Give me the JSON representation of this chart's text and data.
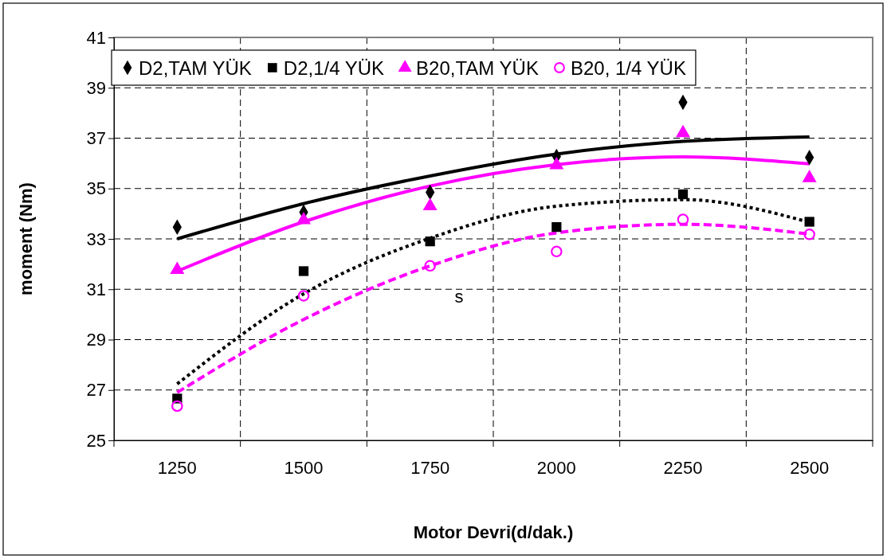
{
  "chart_data": {
    "type": "scatter",
    "xlabel": "Motor Devri(d/dak.)",
    "ylabel": "moment (Nm)",
    "categories": [
      "1250",
      "1500",
      "1750",
      "2000",
      "2250",
      "2500"
    ],
    "ylim": [
      25,
      41
    ],
    "yticks": [
      25,
      27,
      29,
      31,
      33,
      35,
      37,
      39,
      41
    ],
    "grid": true,
    "legend": "top",
    "annotations": [
      "s"
    ],
    "series": [
      {
        "name": "D2,TAM YÜK",
        "color": "#000000",
        "marker": "diamond",
        "values": [
          33.47,
          34.06,
          34.85,
          36.27,
          38.42,
          36.23
        ]
      },
      {
        "name": "D2,1/4 YÜK",
        "color": "#000000",
        "marker": "square",
        "values": [
          26.66,
          31.72,
          32.9,
          33.47,
          34.77,
          33.68
        ]
      },
      {
        "name": "B20,TAM YÜK",
        "color": "#ff00ff",
        "marker": "triangle",
        "values": [
          31.77,
          33.75,
          34.3,
          35.93,
          37.2,
          35.42
        ]
      },
      {
        "name": "B20, 1/4 YÜK",
        "color": "#ff00ff",
        "marker": "circle",
        "values": [
          26.36,
          30.74,
          31.93,
          32.5,
          33.77,
          33.18
        ]
      },
      {
        "type": "line",
        "color": "#000000",
        "marker": "none",
        "line_style": "solid",
        "values": [
          33.0,
          34.4,
          35.5,
          36.37,
          36.87,
          37.05
        ]
      },
      {
        "type": "line",
        "color": "#ff00ff",
        "marker": "none",
        "line_style": "solid",
        "values": [
          31.72,
          33.68,
          35.1,
          35.95,
          36.26,
          35.98
        ]
      },
      {
        "type": "line",
        "color": "#000000",
        "marker": "none",
        "line_style": "dotted",
        "values": [
          27.24,
          30.82,
          33.03,
          34.3,
          34.56,
          33.66
        ]
      },
      {
        "type": "line",
        "color": "#ff00ff",
        "marker": "none",
        "line_style": "dashed",
        "values": [
          26.9,
          29.8,
          31.93,
          33.24,
          33.58,
          33.19
        ]
      }
    ]
  }
}
